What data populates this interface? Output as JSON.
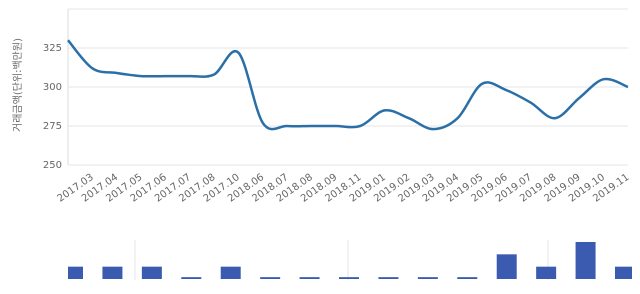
{
  "chart_data": [
    {
      "type": "line",
      "y_label": "거래금액(단위:백만원)",
      "categories": [
        null,
        "2017.03",
        "2017.04",
        "2017.05",
        "2017.06",
        "2017.07",
        "2017.08",
        "2017.10",
        "2018.06",
        "2018.07",
        "2018.08",
        "2018.09",
        "2018.11",
        "2019.01",
        "2019.02",
        "2019.03",
        "2019.04",
        "2019.05",
        "2019.06",
        "2019.07",
        "2019.08",
        "2019.09",
        "2019.10",
        "2019.11"
      ],
      "values": [
        330,
        312,
        309,
        307,
        307,
        307,
        308,
        322,
        277,
        275,
        275,
        275,
        275,
        285,
        280,
        273,
        280,
        302,
        298,
        290,
        280,
        293,
        305,
        300
      ],
      "color": "#2a6fa8",
      "ylim": [
        250,
        350
      ],
      "yticks": [
        250,
        275,
        300,
        325
      ],
      "grid": true
    },
    {
      "type": "bar",
      "values": [
        1,
        1,
        1,
        0.15,
        1,
        0.15,
        0.15,
        0.15,
        0.15,
        0.15,
        0.15,
        2,
        1,
        3,
        1
      ],
      "color": "#3a5bb0",
      "ylim": [
        0,
        3
      ]
    }
  ]
}
